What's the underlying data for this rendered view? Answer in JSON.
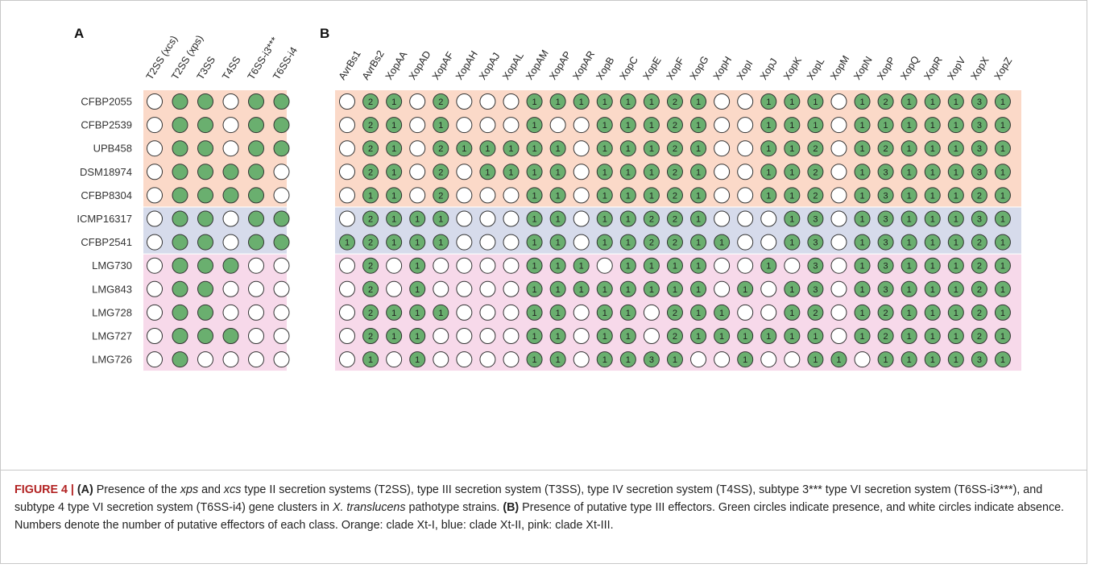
{
  "figure": {
    "panel_a_letter": "A",
    "panel_b_letter": "B",
    "colors": {
      "clade_xt1": "#fbd9c8",
      "clade_xt2": "#d6dbeb",
      "clade_xt3": "#f7d9ea",
      "present": "#6aaf6f",
      "absent": "#ffffff",
      "stroke": "#333333"
    },
    "panel_a_columns": [
      "T2SS (xcs)",
      "T2SS (xps)",
      "T3SS",
      "T4SS",
      "T6SS-i3***",
      "T6SS-i4"
    ],
    "panel_b_columns": [
      "AvrBs1",
      "AvrBs2",
      "XopAA",
      "XopAD",
      "XopAF",
      "XopAH",
      "XopAJ",
      "XopAL",
      "XopAM",
      "XopAP",
      "XopAR",
      "XopB",
      "XopC",
      "XopE",
      "XopF",
      "XopG",
      "XopH",
      "XopI",
      "XopJ",
      "XopK",
      "XopL",
      "XopM",
      "XopN",
      "XopP",
      "XopQ",
      "XopR",
      "XopV",
      "XopX",
      "XopZ"
    ],
    "rows": [
      {
        "strain": "CFBP2055",
        "clade": "clade_xt1",
        "a": [
          0,
          1,
          1,
          0,
          1,
          1
        ],
        "b": [
          0,
          2,
          1,
          0,
          2,
          0,
          0,
          0,
          1,
          1,
          1,
          1,
          1,
          1,
          2,
          1,
          0,
          0,
          1,
          1,
          1,
          0,
          1,
          2,
          1,
          1,
          1,
          3,
          1
        ]
      },
      {
        "strain": "CFBP2539",
        "clade": "clade_xt1",
        "a": [
          0,
          1,
          1,
          0,
          1,
          1
        ],
        "b": [
          0,
          2,
          1,
          0,
          1,
          0,
          0,
          0,
          1,
          0,
          0,
          1,
          1,
          1,
          2,
          1,
          0,
          0,
          1,
          1,
          1,
          0,
          1,
          1,
          1,
          1,
          1,
          3,
          1
        ]
      },
      {
        "strain": "UPB458",
        "clade": "clade_xt1",
        "a": [
          0,
          1,
          1,
          0,
          1,
          1
        ],
        "b": [
          0,
          2,
          1,
          0,
          2,
          1,
          1,
          1,
          1,
          1,
          0,
          1,
          1,
          1,
          2,
          1,
          0,
          0,
          1,
          1,
          2,
          0,
          1,
          2,
          1,
          1,
          1,
          3,
          1
        ]
      },
      {
        "strain": "DSM18974",
        "clade": "clade_xt1",
        "a": [
          0,
          1,
          1,
          1,
          1,
          0
        ],
        "b": [
          0,
          2,
          1,
          0,
          2,
          0,
          1,
          1,
          1,
          1,
          0,
          1,
          1,
          1,
          2,
          1,
          0,
          0,
          1,
          1,
          2,
          0,
          1,
          3,
          1,
          1,
          1,
          3,
          1
        ]
      },
      {
        "strain": "CFBP8304",
        "clade": "clade_xt1",
        "a": [
          0,
          1,
          1,
          1,
          1,
          0
        ],
        "b": [
          0,
          1,
          1,
          0,
          2,
          0,
          0,
          0,
          1,
          1,
          0,
          1,
          1,
          1,
          2,
          1,
          0,
          0,
          1,
          1,
          2,
          0,
          1,
          3,
          1,
          1,
          1,
          2,
          1
        ]
      },
      {
        "strain": "ICMP16317",
        "clade": "clade_xt2",
        "a": [
          0,
          1,
          1,
          0,
          1,
          1
        ],
        "b": [
          0,
          2,
          1,
          1,
          1,
          0,
          0,
          0,
          1,
          1,
          0,
          1,
          1,
          2,
          2,
          1,
          0,
          0,
          0,
          1,
          3,
          0,
          1,
          3,
          1,
          1,
          1,
          3,
          1
        ]
      },
      {
        "strain": "CFBP2541",
        "clade": "clade_xt2",
        "a": [
          0,
          1,
          1,
          0,
          1,
          1
        ],
        "b": [
          1,
          2,
          1,
          1,
          1,
          0,
          0,
          0,
          1,
          1,
          0,
          1,
          1,
          2,
          2,
          1,
          1,
          0,
          0,
          1,
          3,
          0,
          1,
          3,
          1,
          1,
          1,
          2,
          1
        ]
      },
      {
        "strain": "LMG730",
        "clade": "clade_xt3",
        "a": [
          0,
          1,
          1,
          1,
          0,
          0
        ],
        "b": [
          0,
          2,
          0,
          1,
          0,
          0,
          0,
          0,
          1,
          1,
          1,
          0,
          1,
          1,
          1,
          1,
          0,
          0,
          1,
          0,
          3,
          0,
          1,
          3,
          1,
          1,
          1,
          2,
          1
        ]
      },
      {
        "strain": "LMG843",
        "clade": "clade_xt3",
        "a": [
          0,
          1,
          1,
          0,
          0,
          0
        ],
        "b": [
          0,
          2,
          0,
          1,
          0,
          0,
          0,
          0,
          1,
          1,
          1,
          1,
          1,
          1,
          1,
          1,
          0,
          1,
          0,
          1,
          3,
          0,
          1,
          3,
          1,
          1,
          1,
          2,
          1
        ]
      },
      {
        "strain": "LMG728",
        "clade": "clade_xt3",
        "a": [
          0,
          1,
          1,
          0,
          0,
          0
        ],
        "b": [
          0,
          2,
          1,
          1,
          1,
          0,
          0,
          0,
          1,
          1,
          0,
          1,
          1,
          0,
          2,
          1,
          1,
          0,
          0,
          1,
          2,
          0,
          1,
          2,
          1,
          1,
          1,
          2,
          1
        ]
      },
      {
        "strain": "LMG727",
        "clade": "clade_xt3",
        "a": [
          0,
          1,
          1,
          1,
          0,
          0
        ],
        "b": [
          0,
          2,
          1,
          1,
          0,
          0,
          0,
          0,
          1,
          1,
          0,
          1,
          1,
          0,
          2,
          1,
          1,
          1,
          1,
          1,
          1,
          0,
          1,
          2,
          1,
          1,
          1,
          2,
          1
        ]
      },
      {
        "strain": "LMG726",
        "clade": "clade_xt3",
        "a": [
          0,
          1,
          0,
          0,
          0,
          0
        ],
        "b": [
          0,
          1,
          0,
          1,
          0,
          0,
          0,
          0,
          1,
          1,
          0,
          1,
          1,
          3,
          1,
          0,
          0,
          1,
          0,
          0,
          1,
          1,
          0,
          1,
          1,
          1,
          1,
          3,
          1
        ]
      }
    ]
  },
  "caption": {
    "label": "FIGURE 4 |",
    "part_a_tag": "(A)",
    "text_1": " Presence of the ",
    "italic_1": "xps",
    "text_2": " and ",
    "italic_2": "xcs",
    "text_3": " type II secretion systems (T2SS), type III secretion system (T3SS), type IV secretion system (T4SS), subtype 3*** type VI secretion system (T6SS-i3***), and subtype 4 type VI secretion system (T6SS-i4) gene clusters in ",
    "italic_3": "X. translucens",
    "text_4": " pathotype strains. ",
    "part_b_tag": "(B)",
    "text_5": " Presence of putative type III effectors. Green circles indicate presence, and white circles indicate absence. Numbers denote the number of putative effectors of each class. Orange: clade Xt-I, blue: clade Xt-II, pink: clade Xt-III."
  }
}
